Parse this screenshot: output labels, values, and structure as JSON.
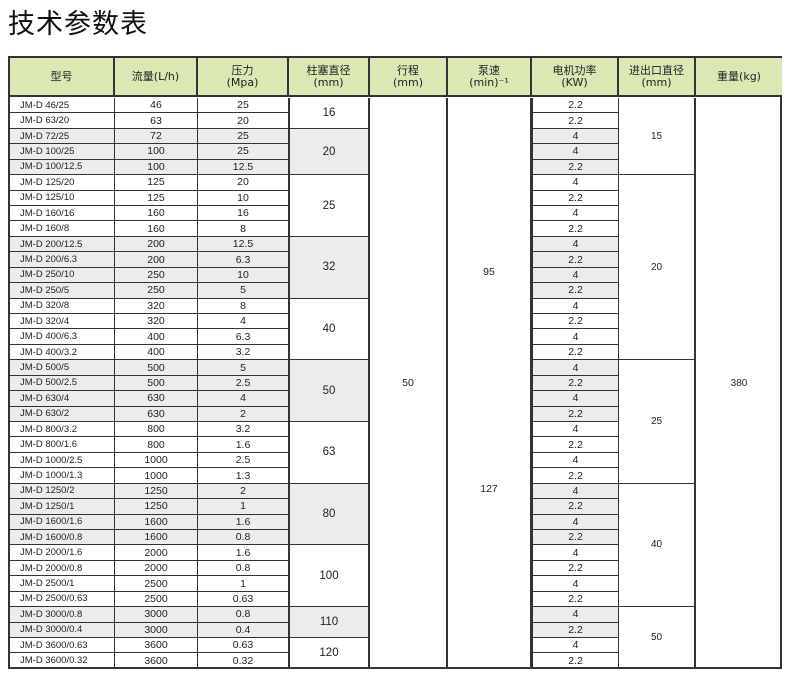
{
  "title": "技术参数表",
  "header_bg": "#dbe8b4",
  "shade_color": "#ececec",
  "headers": [
    {
      "line1": "型号",
      "line2": ""
    },
    {
      "line1": "流量(L/h)",
      "line2": ""
    },
    {
      "line1": "压力",
      "line2": "(Mpa)"
    },
    {
      "line1": "柱塞直径",
      "line2": "(mm)"
    },
    {
      "line1": "行程",
      "line2": "(mm)"
    },
    {
      "line1": "泵速",
      "line2": "(min)⁻¹"
    },
    {
      "line1": "电机功率",
      "line2": "(KW)"
    },
    {
      "line1": "进出口直径",
      "line2": "(mm)"
    },
    {
      "line1": "重量(kg)",
      "line2": ""
    }
  ],
  "rows": [
    {
      "model": "JM-D 46/25",
      "flow": "46",
      "pressure": "25",
      "motor": "2.2"
    },
    {
      "model": "JM-D 63/20",
      "flow": "63",
      "pressure": "20",
      "motor": "2.2"
    },
    {
      "model": "JM-D 72/25",
      "flow": "72",
      "pressure": "25",
      "motor": "4"
    },
    {
      "model": "JM-D 100/25",
      "flow": "100",
      "pressure": "25",
      "motor": "4"
    },
    {
      "model": "JM-D 100/12.5",
      "flow": "100",
      "pressure": "12.5",
      "motor": "2.2"
    },
    {
      "model": "JM-D 125/20",
      "flow": "125",
      "pressure": "20",
      "motor": "4"
    },
    {
      "model": "JM-D 125/10",
      "flow": "125",
      "pressure": "10",
      "motor": "2.2"
    },
    {
      "model": "JM-D 160/16",
      "flow": "160",
      "pressure": "16",
      "motor": "4"
    },
    {
      "model": "JM-D 160/8",
      "flow": "160",
      "pressure": "8",
      "motor": "2.2"
    },
    {
      "model": "JM-D 200/12.5",
      "flow": "200",
      "pressure": "12.5",
      "motor": "4"
    },
    {
      "model": "JM-D 200/6.3",
      "flow": "200",
      "pressure": "6.3",
      "motor": "2.2"
    },
    {
      "model": "JM-D 250/10",
      "flow": "250",
      "pressure": "10",
      "motor": "4"
    },
    {
      "model": "JM-D 250/5",
      "flow": "250",
      "pressure": "5",
      "motor": "2.2"
    },
    {
      "model": "JM-D 320/8",
      "flow": "320",
      "pressure": "8",
      "motor": "4"
    },
    {
      "model": "JM-D 320/4",
      "flow": "320",
      "pressure": "4",
      "motor": "2.2"
    },
    {
      "model": "JM-D 400/6.3",
      "flow": "400",
      "pressure": "6.3",
      "motor": "4"
    },
    {
      "model": "JM-D 400/3.2",
      "flow": "400",
      "pressure": "3.2",
      "motor": "2.2"
    },
    {
      "model": "JM-D 500/5",
      "flow": "500",
      "pressure": "5",
      "motor": "4"
    },
    {
      "model": "JM-D 500/2.5",
      "flow": "500",
      "pressure": "2.5",
      "motor": "2.2"
    },
    {
      "model": "JM-D 630/4",
      "flow": "630",
      "pressure": "4",
      "motor": "4"
    },
    {
      "model": "JM-D 630/2",
      "flow": "630",
      "pressure": "2",
      "motor": "2.2"
    },
    {
      "model": "JM-D 800/3.2",
      "flow": "800",
      "pressure": "3.2",
      "motor": "4"
    },
    {
      "model": "JM-D 800/1.6",
      "flow": "800",
      "pressure": "1.6",
      "motor": "2.2"
    },
    {
      "model": "JM-D 1000/2.5",
      "flow": "1000",
      "pressure": "2.5",
      "motor": "4"
    },
    {
      "model": "JM-D 1000/1.3",
      "flow": "1000",
      "pressure": "1.3",
      "motor": "2.2"
    },
    {
      "model": "JM-D 1250/2",
      "flow": "1250",
      "pressure": "2",
      "motor": "4"
    },
    {
      "model": "JM-D 1250/1",
      "flow": "1250",
      "pressure": "1",
      "motor": "2.2"
    },
    {
      "model": "JM-D 1600/1.6",
      "flow": "1600",
      "pressure": "1.6",
      "motor": "4"
    },
    {
      "model": "JM-D 1600/0.8",
      "flow": "1600",
      "pressure": "0.8",
      "motor": "2.2"
    },
    {
      "model": "JM-D 2000/1.6",
      "flow": "2000",
      "pressure": "1.6",
      "motor": "4"
    },
    {
      "model": "JM-D 2000/0.8",
      "flow": "2000",
      "pressure": "0.8",
      "motor": "2.2"
    },
    {
      "model": "JM-D 2500/1",
      "flow": "2500",
      "pressure": "1",
      "motor": "4"
    },
    {
      "model": "JM-D 2500/0.63",
      "flow": "2500",
      "pressure": "0.63",
      "motor": "2.2"
    },
    {
      "model": "JM-D 3000/0.8",
      "flow": "3000",
      "pressure": "0.8",
      "motor": "4"
    },
    {
      "model": "JM-D 3000/0.4",
      "flow": "3000",
      "pressure": "0.4",
      "motor": "2.2"
    },
    {
      "model": "JM-D 3600/0.63",
      "flow": "3600",
      "pressure": "0.63",
      "motor": "4"
    },
    {
      "model": "JM-D 3600/0.32",
      "flow": "3600",
      "pressure": "0.32",
      "motor": "2.2"
    }
  ],
  "plunger_groups": [
    {
      "value": "16",
      "rows": 2
    },
    {
      "value": "20",
      "rows": 3
    },
    {
      "value": "25",
      "rows": 4
    },
    {
      "value": "32",
      "rows": 4
    },
    {
      "value": "40",
      "rows": 4
    },
    {
      "value": "50",
      "rows": 4
    },
    {
      "value": "63",
      "rows": 4
    },
    {
      "value": "80",
      "rows": 4
    },
    {
      "value": "100",
      "rows": 4
    },
    {
      "value": "110",
      "rows": 2
    },
    {
      "value": "120",
      "rows": 2
    }
  ],
  "inlet_groups": [
    {
      "value": "15",
      "rows": 5
    },
    {
      "value": "20",
      "rows": 12
    },
    {
      "value": "25",
      "rows": 8
    },
    {
      "value": "40",
      "rows": 8
    },
    {
      "value": "50",
      "rows": 4
    }
  ],
  "stroke": "50",
  "pump_speed": [
    "95",
    "127"
  ],
  "weight": "380"
}
